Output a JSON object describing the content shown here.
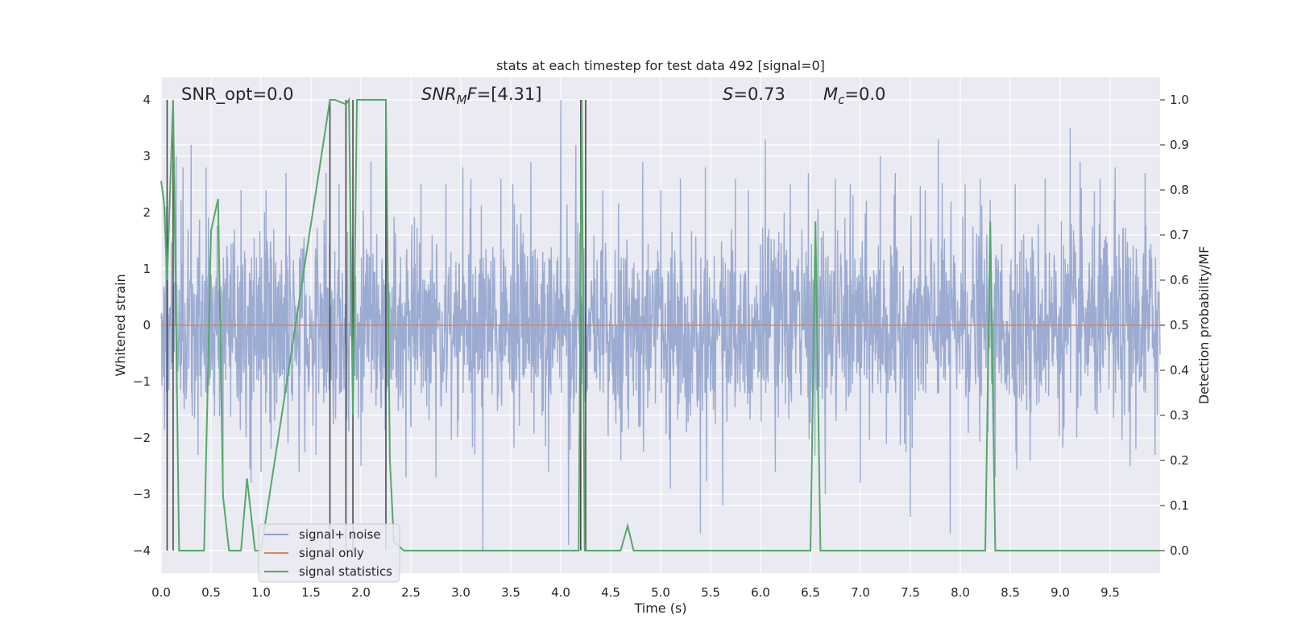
{
  "chart_data": {
    "type": "line",
    "title": "stats at each timestep for test data 492 [signal=0]",
    "xlabel": "Time (s)",
    "ylabel": "Whitened strain",
    "y2label": "Detection probability/MF",
    "xlim": [
      0.0,
      10.0
    ],
    "ylim": [
      -4.4,
      4.4
    ],
    "y2lim": [
      -0.05,
      1.05
    ],
    "xticks": [
      0.0,
      0.5,
      1.0,
      1.5,
      2.0,
      2.5,
      3.0,
      3.5,
      4.0,
      4.5,
      5.0,
      5.5,
      6.0,
      6.5,
      7.0,
      7.5,
      8.0,
      8.5,
      9.0,
      9.5
    ],
    "xtick_labels": [
      "0.0",
      "0.5",
      "1.0",
      "1.5",
      "2.0",
      "2.5",
      "3.0",
      "3.5",
      "4.0",
      "4.5",
      "5.0",
      "5.5",
      "6.0",
      "6.5",
      "7.0",
      "7.5",
      "8.0",
      "8.5",
      "9.0",
      "9.5"
    ],
    "yticks": [
      4,
      3,
      2,
      1,
      0,
      -1,
      -2,
      -3,
      -4
    ],
    "ytick_labels": [
      "4",
      "3",
      "2",
      "1",
      "0",
      "−1",
      "−2",
      "−3",
      "−4"
    ],
    "y2ticks": [
      1.0,
      0.9,
      0.8,
      0.7,
      0.6,
      0.5,
      0.4,
      0.3,
      0.2,
      0.1,
      0.0
    ],
    "y2tick_labels": [
      "1.0",
      "0.9",
      "0.8",
      "0.7",
      "0.6",
      "0.5",
      "0.4",
      "0.3",
      "0.2",
      "0.1",
      "0.0"
    ],
    "grid": true,
    "legend_position": "lower-left",
    "annotations": {
      "snr_opt": "SNR_opt=0.0",
      "snr_mf_main": "SNR",
      "snr_mf_sub": "M",
      "snr_mf_rest": "F",
      "snr_mf_value": "=[4.31]",
      "s_symbol": "S",
      "s_value": "=0.73",
      "mc_main": "M",
      "mc_sub": "c",
      "mc_value": "=0.0"
    },
    "series": [
      {
        "name": "signal+ noise",
        "color": "#8da0cb",
        "axis": "left",
        "description": "whitened strain noise ~N(0,1) sampled densely over 0-10 s",
        "envelope_core": 1.6,
        "spikes": [
          [
            0.05,
            2.1
          ],
          [
            0.06,
            -2.9
          ],
          [
            0.15,
            3.0
          ],
          [
            0.22,
            2.8
          ],
          [
            0.3,
            3.2
          ],
          [
            0.37,
            -2.3
          ],
          [
            0.45,
            2.8
          ],
          [
            0.62,
            -2.7
          ],
          [
            0.8,
            2.4
          ],
          [
            0.9,
            -2.8
          ],
          [
            1.0,
            -2.6
          ],
          [
            1.05,
            2.4
          ],
          [
            1.1,
            -2.2
          ],
          [
            1.25,
            2.7
          ],
          [
            1.38,
            -2.6
          ],
          [
            1.55,
            -2.3
          ],
          [
            1.65,
            2.7
          ],
          [
            1.78,
            2.5
          ],
          [
            2.0,
            -2.5
          ],
          [
            2.1,
            2.9
          ],
          [
            2.25,
            2.8
          ],
          [
            2.45,
            -2.7
          ],
          [
            2.6,
            2.5
          ],
          [
            2.75,
            -2.7
          ],
          [
            2.85,
            2.5
          ],
          [
            3.02,
            2.8
          ],
          [
            3.1,
            2.6
          ],
          [
            3.22,
            -4.0
          ],
          [
            3.4,
            2.6
          ],
          [
            3.52,
            2.5
          ],
          [
            3.7,
            2.9
          ],
          [
            3.88,
            -2.6
          ],
          [
            4.0,
            4.0
          ],
          [
            4.08,
            -3.9
          ],
          [
            4.15,
            3.2
          ],
          [
            4.25,
            2.8
          ],
          [
            4.42,
            2.4
          ],
          [
            4.6,
            -2.4
          ],
          [
            4.82,
            2.9
          ],
          [
            5.0,
            2.4
          ],
          [
            5.1,
            -2.9
          ],
          [
            5.2,
            2.6
          ],
          [
            5.4,
            -3.7
          ],
          [
            5.45,
            2.8
          ],
          [
            5.62,
            -3.2
          ],
          [
            5.75,
            2.6
          ],
          [
            5.88,
            2.4
          ],
          [
            6.05,
            3.3
          ],
          [
            6.15,
            -2.6
          ],
          [
            6.3,
            2.5
          ],
          [
            6.48,
            2.7
          ],
          [
            6.65,
            -3.0
          ],
          [
            6.75,
            2.6
          ],
          [
            6.9,
            2.5
          ],
          [
            7.0,
            -2.8
          ],
          [
            7.2,
            3.0
          ],
          [
            7.35,
            2.7
          ],
          [
            7.5,
            -3.4
          ],
          [
            7.65,
            2.4
          ],
          [
            7.78,
            3.3
          ],
          [
            7.9,
            -3.7
          ],
          [
            8.05,
            2.5
          ],
          [
            8.2,
            2.6
          ],
          [
            8.35,
            -2.7
          ],
          [
            8.55,
            2.5
          ],
          [
            8.7,
            -2.4
          ],
          [
            8.85,
            2.6
          ],
          [
            9.1,
            3.5
          ],
          [
            9.2,
            2.9
          ],
          [
            9.4,
            2.6
          ],
          [
            9.55,
            2.8
          ],
          [
            9.7,
            -2.5
          ],
          [
            9.85,
            2.7
          ],
          [
            9.95,
            -2.3
          ]
        ]
      },
      {
        "name": "signal only",
        "color": "#dd8452",
        "axis": "left",
        "x": [
          0.0,
          10.0
        ],
        "y": [
          0.0,
          0.0
        ]
      },
      {
        "name": "signal statistics",
        "color": "#55a868",
        "axis": "right",
        "x": [
          0.0,
          0.03,
          0.06,
          0.09,
          0.12,
          0.18,
          0.43,
          0.5,
          0.57,
          0.62,
          0.68,
          0.8,
          0.86,
          0.94,
          1.0,
          1.69,
          1.74,
          1.85,
          1.88,
          1.92,
          1.96,
          2.0,
          2.25,
          2.29,
          2.33,
          2.43,
          4.18,
          4.21,
          4.24,
          4.27,
          4.3,
          4.6,
          4.67,
          4.73,
          4.8,
          6.5,
          6.55,
          6.6,
          6.67,
          6.71,
          8.25,
          8.3,
          8.35,
          8.4,
          10.0
        ],
        "y": [
          0.82,
          0.77,
          0.6,
          0.8,
          1.0,
          0.0,
          0.0,
          0.71,
          0.78,
          0.12,
          0.0,
          0.0,
          0.16,
          0.0,
          0.0,
          1.0,
          1.0,
          0.99,
          1.0,
          0.3,
          1.0,
          1.0,
          1.0,
          0.2,
          0.02,
          0.0,
          0.0,
          1.0,
          0.0,
          0.0,
          0.0,
          0.0,
          0.055,
          0.0,
          0.0,
          0.0,
          0.73,
          0.0,
          0.0,
          0.0,
          0.0,
          0.73,
          0.0,
          0.0,
          0.0
        ]
      }
    ],
    "vertical_markers": {
      "color": "#4a4a4a",
      "axis": "left",
      "x": [
        0.06,
        0.12,
        1.69,
        1.85,
        1.92,
        2.25,
        4.2,
        4.25
      ],
      "y_range": [
        -4.0,
        4.0
      ]
    }
  }
}
